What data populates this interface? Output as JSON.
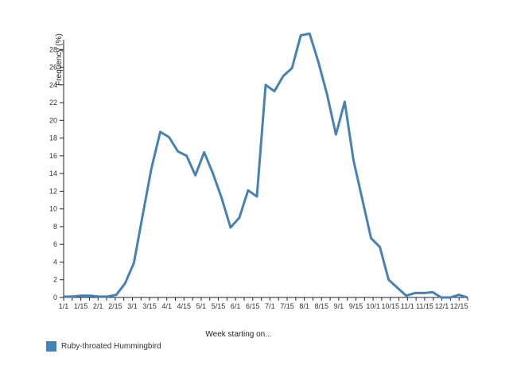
{
  "colors": {
    "series": "#4682B4",
    "axis": "#222222"
  },
  "chart_data": {
    "type": "line",
    "xlabel": "Week starting on...",
    "ylabel": "Frequency (%)",
    "ylim": [
      0,
      30
    ],
    "yticks": [
      0,
      2,
      4,
      6,
      8,
      10,
      12,
      14,
      16,
      18,
      20,
      22,
      24,
      26,
      28
    ],
    "grid": false,
    "legend_position": "bottom-left",
    "x_tick_labels": [
      "1/1",
      "1/15",
      "2/1",
      "2/15",
      "3/1",
      "3/15",
      "4/1",
      "4/15",
      "5/1",
      "5/15",
      "6/1",
      "6/15",
      "7/1",
      "7/15",
      "8/1",
      "8/15",
      "9/1",
      "9/15",
      "10/1",
      "10/15",
      "11/1",
      "11/15",
      "12/1",
      "12/15"
    ],
    "x_tick_subdivisions": 2,
    "series": [
      {
        "name": "Ruby-throated Hummingbird",
        "color": "#4682B4",
        "values": [
          0.1,
          0.1,
          0.2,
          0.2,
          0.1,
          0.1,
          0.3,
          1.6,
          3.9,
          9.3,
          14.6,
          18.7,
          18.1,
          16.5,
          16.0,
          13.8,
          16.4,
          14.0,
          11.2,
          7.9,
          9.0,
          12.1,
          11.4,
          24.0,
          23.3,
          25.0,
          25.9,
          29.6,
          29.8,
          26.6,
          22.9,
          18.4,
          22.1,
          15.5,
          11.1,
          6.7,
          5.7,
          2.0,
          1.1,
          0.2,
          0.5,
          0.5,
          0.6,
          0.0,
          0.0,
          0.3,
          0.0
        ]
      }
    ]
  }
}
